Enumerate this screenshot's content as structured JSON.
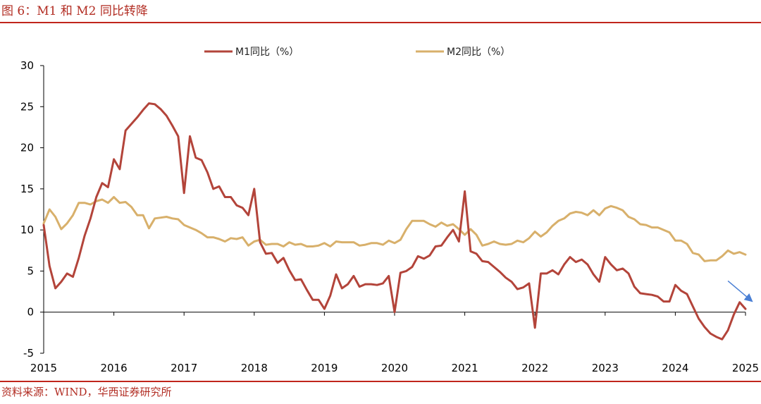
{
  "figure": {
    "title": "图 6：M1 和 M2 同比转降",
    "source": "资料来源：WIND，华西证券研究所"
  },
  "colors": {
    "accent_red": "#c0261c",
    "m1_line": "#b3443a",
    "m2_line": "#d8b06b",
    "trend_arrow": "#4a7fd4"
  },
  "chart_data": {
    "type": "line",
    "title": "",
    "xlabel": "",
    "ylabel": "",
    "ylim": [
      -5,
      30
    ],
    "yticks": [
      -5,
      0,
      5,
      10,
      15,
      20,
      25,
      30
    ],
    "xticks": [
      "2015",
      "2016",
      "2017",
      "2018",
      "2019",
      "2020",
      "2021",
      "2022",
      "2023",
      "2024",
      "2025"
    ],
    "xlim": [
      "2015-01",
      "2025-01"
    ],
    "grid": false,
    "legend": "top-center",
    "x": [
      "2015-01",
      "2015-02",
      "2015-03",
      "2015-04",
      "2015-05",
      "2015-06",
      "2015-07",
      "2015-08",
      "2015-09",
      "2015-10",
      "2015-11",
      "2015-12",
      "2016-01",
      "2016-02",
      "2016-03",
      "2016-04",
      "2016-05",
      "2016-06",
      "2016-07",
      "2016-08",
      "2016-09",
      "2016-10",
      "2016-11",
      "2016-12",
      "2017-01",
      "2017-02",
      "2017-03",
      "2017-04",
      "2017-05",
      "2017-06",
      "2017-07",
      "2017-08",
      "2017-09",
      "2017-10",
      "2017-11",
      "2017-12",
      "2018-01",
      "2018-02",
      "2018-03",
      "2018-04",
      "2018-05",
      "2018-06",
      "2018-07",
      "2018-08",
      "2018-09",
      "2018-10",
      "2018-11",
      "2018-12",
      "2019-01",
      "2019-02",
      "2019-03",
      "2019-04",
      "2019-05",
      "2019-06",
      "2019-07",
      "2019-08",
      "2019-09",
      "2019-10",
      "2019-11",
      "2019-12",
      "2020-01",
      "2020-02",
      "2020-03",
      "2020-04",
      "2020-05",
      "2020-06",
      "2020-07",
      "2020-08",
      "2020-09",
      "2020-10",
      "2020-11",
      "2020-12",
      "2021-01",
      "2021-02",
      "2021-03",
      "2021-04",
      "2021-05",
      "2021-06",
      "2021-07",
      "2021-08",
      "2021-09",
      "2021-10",
      "2021-11",
      "2021-12",
      "2022-01",
      "2022-02",
      "2022-03",
      "2022-04",
      "2022-05",
      "2022-06",
      "2022-07",
      "2022-08",
      "2022-09",
      "2022-10",
      "2022-11",
      "2022-12",
      "2023-01",
      "2023-02",
      "2023-03",
      "2023-04",
      "2023-05",
      "2023-06",
      "2023-07",
      "2023-08",
      "2023-09",
      "2023-10",
      "2023-11",
      "2023-12",
      "2024-01",
      "2024-02",
      "2024-03",
      "2024-04",
      "2024-05",
      "2024-06",
      "2024-07",
      "2024-08",
      "2024-09",
      "2024-10",
      "2024-11",
      "2024-12",
      "2025-01"
    ],
    "series": [
      {
        "name": "M1同比（%）",
        "values": [
          10.6,
          5.6,
          2.9,
          3.7,
          4.7,
          4.3,
          6.6,
          9.3,
          11.4,
          14.0,
          15.7,
          15.2,
          18.6,
          17.4,
          22.1,
          22.9,
          23.7,
          24.6,
          25.4,
          25.3,
          24.7,
          23.9,
          22.7,
          21.4,
          14.5,
          21.4,
          18.8,
          18.5,
          17.0,
          15.0,
          15.3,
          14.0,
          14.0,
          13.0,
          12.7,
          11.8,
          15.0,
          8.5,
          7.1,
          7.2,
          6.0,
          6.6,
          5.1,
          3.9,
          4.0,
          2.7,
          1.5,
          1.5,
          0.4,
          2.0,
          4.6,
          2.9,
          3.4,
          4.4,
          3.1,
          3.4,
          3.4,
          3.3,
          3.5,
          4.4,
          0.0,
          4.8,
          5.0,
          5.5,
          6.8,
          6.5,
          6.9,
          8.0,
          8.1,
          9.1,
          10.0,
          8.6,
          14.7,
          7.4,
          7.1,
          6.2,
          6.1,
          5.5,
          4.9,
          4.2,
          3.7,
          2.8,
          3.0,
          3.5,
          -1.9,
          4.7,
          4.7,
          5.1,
          4.6,
          5.8,
          6.7,
          6.1,
          6.4,
          5.8,
          4.6,
          3.7,
          6.7,
          5.8,
          5.1,
          5.3,
          4.7,
          3.1,
          2.3,
          2.2,
          2.1,
          1.9,
          1.3,
          1.3,
          3.3,
          2.6,
          2.2,
          0.7,
          -0.8,
          -1.8,
          -2.6,
          -3.0,
          -3.3,
          -2.2,
          -0.3,
          1.2,
          0.4
        ]
      },
      {
        "name": "M2同比（%）",
        "values": [
          10.8,
          12.5,
          11.6,
          10.1,
          10.8,
          11.8,
          13.3,
          13.3,
          13.1,
          13.5,
          13.7,
          13.3,
          14.0,
          13.3,
          13.4,
          12.8,
          11.8,
          11.8,
          10.2,
          11.4,
          11.5,
          11.6,
          11.4,
          11.3,
          10.6,
          10.3,
          10.0,
          9.6,
          9.1,
          9.1,
          8.9,
          8.6,
          9.0,
          8.9,
          9.1,
          8.1,
          8.6,
          8.8,
          8.2,
          8.3,
          8.3,
          8.0,
          8.5,
          8.2,
          8.3,
          8.0,
          8.0,
          8.1,
          8.4,
          8.0,
          8.6,
          8.5,
          8.5,
          8.5,
          8.1,
          8.2,
          8.4,
          8.4,
          8.2,
          8.7,
          8.4,
          8.8,
          10.1,
          11.1,
          11.1,
          11.1,
          10.7,
          10.4,
          10.9,
          10.5,
          10.7,
          10.1,
          9.4,
          10.1,
          9.4,
          8.1,
          8.3,
          8.6,
          8.3,
          8.2,
          8.3,
          8.7,
          8.5,
          9.0,
          9.8,
          9.2,
          9.7,
          10.5,
          11.1,
          11.4,
          12.0,
          12.2,
          12.1,
          11.8,
          12.4,
          11.8,
          12.6,
          12.9,
          12.7,
          12.4,
          11.6,
          11.3,
          10.7,
          10.6,
          10.3,
          10.3,
          10.0,
          9.7,
          8.7,
          8.7,
          8.3,
          7.2,
          7.0,
          6.2,
          6.3,
          6.3,
          6.8,
          7.5,
          7.1,
          7.3,
          7.0
        ]
      }
    ],
    "annotations": [
      {
        "type": "arrow",
        "meaning": "downward trend",
        "from": [
          "2024-10",
          3.8
        ],
        "to": [
          "2025-02",
          1.4
        ]
      }
    ]
  }
}
